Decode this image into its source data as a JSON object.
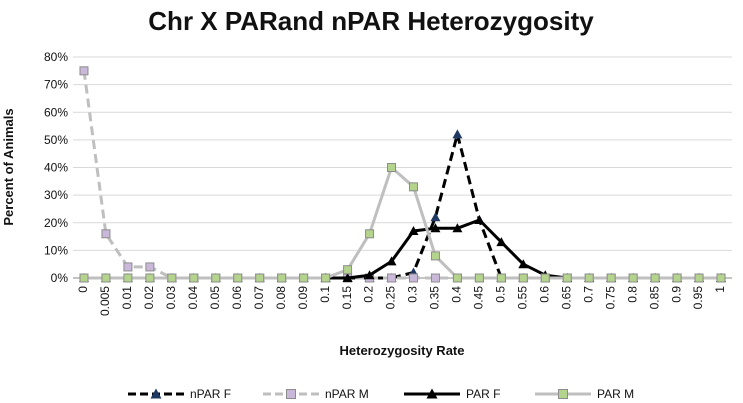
{
  "chart_data": {
    "type": "line",
    "title": "Chr X PARand nPAR Heterozygosity",
    "xlabel": "Heterozygosity Rate",
    "ylabel": "Percent of Animals",
    "categories": [
      "0",
      "0.005",
      "0.01",
      "0.02",
      "0.03",
      "0.04",
      "0.05",
      "0.06",
      "0.07",
      "0.08",
      "0.09",
      "0.1",
      "0.15",
      "0.2",
      "0.25",
      "0.3",
      "0.35",
      "0.4",
      "0.45",
      "0.5",
      "0.55",
      "0.6",
      "0.65",
      "0.7",
      "0.75",
      "0.8",
      "0.85",
      "0.9",
      "0.95",
      "1"
    ],
    "yticks": [
      "0%",
      "10%",
      "20%",
      "30%",
      "40%",
      "50%",
      "60%",
      "70%",
      "80%"
    ],
    "ylim": [
      0,
      80
    ],
    "grid": true,
    "legend_position": "bottom",
    "series": [
      {
        "name": "nPAR F",
        "color": "#1f3864",
        "line_color": "#000000",
        "dash": "dashed",
        "marker": "triangle",
        "values": [
          0,
          0,
          0,
          0,
          0,
          0,
          0,
          0,
          0,
          0,
          0,
          0,
          0,
          0,
          0,
          2,
          22,
          52,
          21,
          0,
          0,
          0,
          0,
          0,
          0,
          0,
          0,
          0,
          0,
          0
        ]
      },
      {
        "name": "nPAR M",
        "color": "#c9b8d9",
        "line_color": "#bfbfbf",
        "dash": "dashed",
        "marker": "square",
        "values": [
          75,
          16,
          4,
          4,
          0,
          0,
          0,
          0,
          0,
          0,
          0,
          0,
          0,
          0,
          0,
          0,
          0,
          0,
          0,
          0,
          0,
          0,
          0,
          0,
          0,
          0,
          0,
          0,
          0,
          0
        ]
      },
      {
        "name": "PAR F",
        "color": "#000000",
        "line_color": "#000000",
        "dash": "solid",
        "marker": "triangle",
        "values": [
          null,
          null,
          null,
          null,
          null,
          null,
          null,
          null,
          null,
          null,
          null,
          0,
          0,
          1,
          6,
          17,
          18,
          18,
          21,
          13,
          5,
          1,
          0,
          0,
          0,
          0,
          0,
          0,
          0,
          0
        ]
      },
      {
        "name": "PAR M",
        "color": "#b4d38c",
        "line_color": "#bfbfbf",
        "dash": "solid",
        "marker": "square",
        "values": [
          0,
          0,
          0,
          0,
          0,
          0,
          0,
          0,
          0,
          0,
          0,
          0,
          3,
          16,
          40,
          33,
          8,
          0,
          0,
          0,
          0,
          0,
          0,
          0,
          0,
          0,
          0,
          0,
          0,
          0
        ]
      }
    ]
  }
}
